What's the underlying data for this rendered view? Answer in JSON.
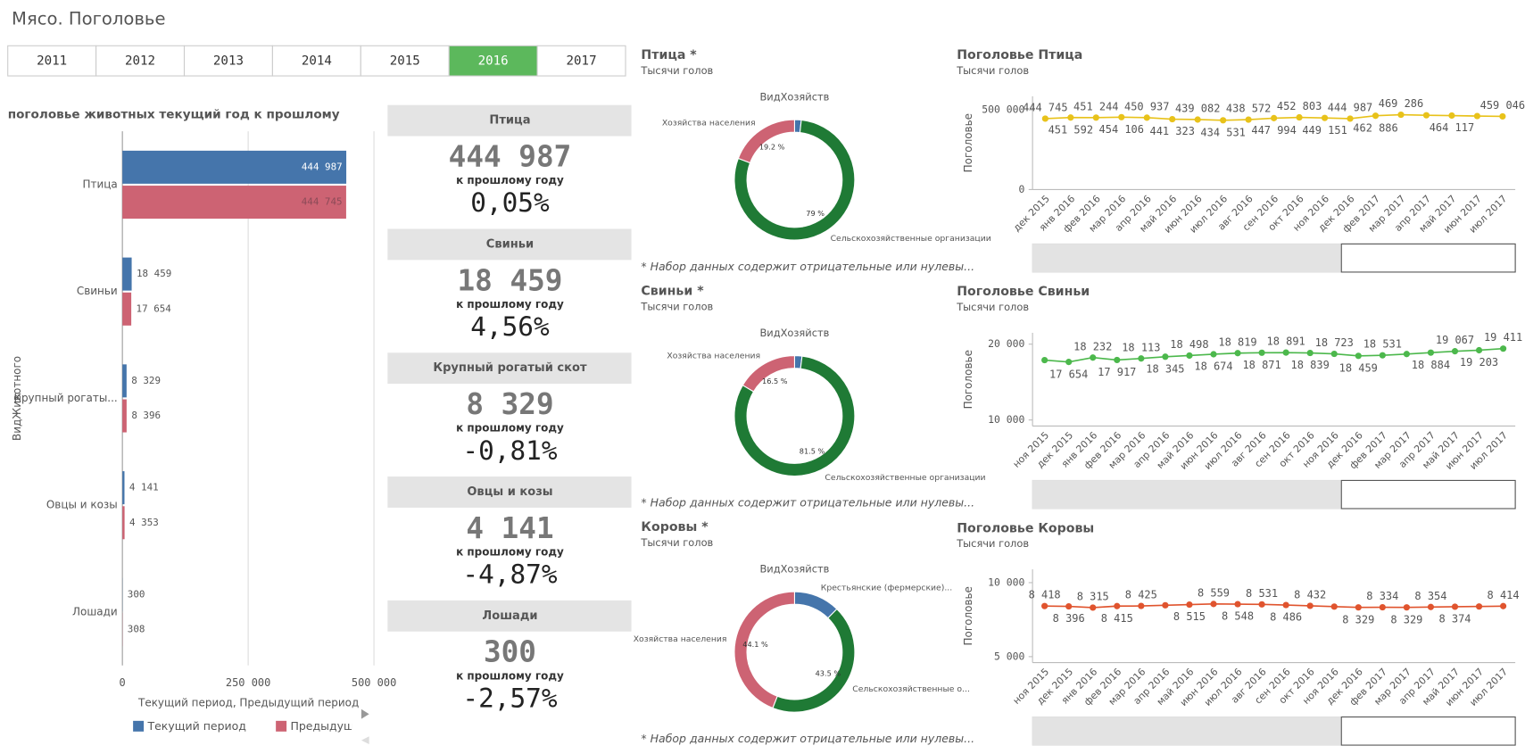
{
  "title": "Мясо. Поголовье",
  "years": [
    "2011",
    "2012",
    "2013",
    "2014",
    "2015",
    "2016",
    "2017"
  ],
  "selected_year": "2016",
  "kpis": [
    {
      "name": "Птица",
      "value": "444 987",
      "caption": "к прошлому году",
      "change": "0,05%"
    },
    {
      "name": "Свиньи",
      "value": "18 459",
      "caption": "к прошлому году",
      "change": "4,56%"
    },
    {
      "name": "Крупный рогатый скот",
      "value": "8 329",
      "caption": "к прошлому году",
      "change": "-0,81%"
    },
    {
      "name": "Овцы и козы",
      "value": "4 141",
      "caption": "к прошлому году",
      "change": "-4,87%"
    },
    {
      "name": "Лошади",
      "value": "300",
      "caption": "к прошлому году",
      "change": "-2,57%"
    }
  ],
  "chart_data": [
    {
      "type": "bar",
      "orientation": "horizontal",
      "title": "поголовье животных текущий год к прошлому",
      "x_label": "Текущий период, Предыдущий период",
      "y_label": "ВидЖивотного",
      "categories": [
        "Птица",
        "Свиньи",
        "Крупный рогаты...",
        "Овцы и козы",
        "Лошади"
      ],
      "series": [
        {
          "name": "Текущий период",
          "color": "#4575ab",
          "values": [
            444987,
            18459,
            8329,
            4141,
            300
          ],
          "value_labels": [
            "444 987",
            "18 459",
            "8 329",
            "4 141",
            "300"
          ]
        },
        {
          "name": "Предыдущий период",
          "color": "#cd6373",
          "values": [
            444745,
            17654,
            8396,
            4353,
            308
          ],
          "value_labels": [
            "444 745",
            "17 654",
            "8 396",
            "4 353",
            "308"
          ]
        }
      ],
      "xlim": [
        0,
        500000
      ],
      "xticks": [
        0,
        {
          "value": 250000,
          "label": "250 000"
        },
        {
          "value": 500000,
          "label": "500 000"
        }
      ],
      "grid": true
    },
    {
      "type": "pie",
      "donut": true,
      "title": "Птица *",
      "subtitle": "Тысячи голов",
      "dimension_label": "ВидХозяйств",
      "categories": [
        null,
        "Сельскохозяйственные организации",
        "Хозяйства населения"
      ],
      "values": [
        1.8,
        79,
        19.2
      ],
      "value_labels": [
        null,
        "79 %",
        "19.2 %"
      ],
      "colors": [
        "#4575ab",
        "#1f7a35",
        "#cd6373"
      ],
      "footnote": "* Набор данных содержит отрицательные или нулевы..."
    },
    {
      "type": "pie",
      "donut": true,
      "title": "Свиньи *",
      "subtitle": "Тысячи голов",
      "dimension_label": "ВидХозяйств",
      "categories": [
        null,
        "Сельскохозяйственные организации",
        "Хозяйства населения"
      ],
      "values": [
        2,
        81.5,
        16.5
      ],
      "value_labels": [
        null,
        "81.5 %",
        "16.5 %"
      ],
      "colors": [
        "#4575ab",
        "#1f7a35",
        "#cd6373"
      ],
      "footnote": "* Набор данных содержит отрицательные или нулевы..."
    },
    {
      "type": "pie",
      "donut": true,
      "title": "Коровы *",
      "subtitle": "Тысячи голов",
      "dimension_label": "ВидХозяйств",
      "categories": [
        "Крестьянские (фермерские)...",
        "Сельскохозяйственные о...",
        "Хозяйства населения"
      ],
      "values": [
        12.4,
        43.5,
        44.1
      ],
      "value_labels": [
        null,
        "43.5 %",
        "44.1 %"
      ],
      "colors": [
        "#4575ab",
        "#1f7a35",
        "#cd6373"
      ],
      "footnote": "* Набор данных содержит отрицательные или нулевы..."
    },
    {
      "type": "line",
      "title": "Поголовье Птица",
      "subtitle": "Тысячи голов",
      "y_label": "Поголовье",
      "color": "#e8c21a",
      "categories": [
        "дек 2015",
        "янв 2016",
        "фев 2016",
        "мар 2016",
        "апр 2016",
        "май 2016",
        "июн 2016",
        "июл 2016",
        "авг 2016",
        "сен 2016",
        "окт 2016",
        "ноя 2016",
        "дек 2016",
        "фев 2017",
        "мар 2017",
        "апр 2017",
        "май 2017",
        "июн 2017",
        "июл 2017"
      ],
      "values": [
        444745,
        451592,
        451244,
        454106,
        450937,
        441323,
        439082,
        434531,
        438572,
        447994,
        452803,
        449151,
        444987,
        462886,
        469286,
        466000,
        464117,
        461000,
        459046
      ],
      "value_labels": [
        "444 745",
        "451 592",
        "451 244",
        "454 106",
        "450 937",
        "441 323",
        "439 082",
        "434 531",
        "438 572",
        "447 994",
        "452 803",
        "449 151",
        "444 987",
        "462 886",
        "469 286",
        null,
        "464 117",
        null,
        "459 046"
      ],
      "ylim": [
        0,
        585000
      ],
      "yticks": [
        0,
        {
          "value": 500000,
          "label": "500 000"
        }
      ]
    },
    {
      "type": "line",
      "title": "Поголовье Свиньи",
      "subtitle": "Тысячи голов",
      "y_label": "Поголовье",
      "color": "#4cb84c",
      "categories": [
        "ноя 2015",
        "дек 2015",
        "янв 2016",
        "фев 2016",
        "мар 2016",
        "апр 2016",
        "май 2016",
        "июн 2016",
        "июл 2016",
        "авг 2016",
        "сен 2016",
        "окт 2016",
        "ноя 2016",
        "дек 2016",
        "фев 2017",
        "мар 2017",
        "апр 2017",
        "май 2017",
        "июн 2017",
        "июл 2017"
      ],
      "values": [
        17900,
        17654,
        18232,
        17917,
        18113,
        18345,
        18498,
        18674,
        18819,
        18871,
        18891,
        18839,
        18723,
        18459,
        18531,
        18700,
        18884,
        19067,
        19203,
        19411
      ],
      "value_labels": [
        null,
        "17 654",
        "18 232",
        "17 917",
        "18 113",
        "18 345",
        "18 498",
        "18 674",
        "18 819",
        "18 871",
        "18 891",
        "18 839",
        "18 723",
        "18 459",
        "18 531",
        null,
        "18 884",
        "19 067",
        "19 203",
        "19 411"
      ],
      "ylim": [
        9200,
        21500
      ],
      "yticks": [
        {
          "value": 10000,
          "label": "10 000"
        },
        {
          "value": 20000,
          "label": "20 000"
        }
      ]
    },
    {
      "type": "line",
      "title": "Поголовье Коровы",
      "subtitle": "Тысячи голов",
      "y_label": "Поголовье",
      "color": "#e0542e",
      "categories": [
        "ноя 2015",
        "дек 2015",
        "янв 2016",
        "фев 2016",
        "мар 2016",
        "апр 2016",
        "май 2016",
        "июн 2016",
        "июл 2016",
        "авг 2016",
        "сен 2016",
        "окт 2016",
        "ноя 2016",
        "дек 2016",
        "фев 2017",
        "мар 2017",
        "апр 2017",
        "май 2017",
        "июн 2017",
        "июл 2017"
      ],
      "values": [
        8418,
        8396,
        8315,
        8415,
        8425,
        8470,
        8515,
        8559,
        8548,
        8531,
        8486,
        8432,
        8380,
        8329,
        8334,
        8329,
        8354,
        8374,
        8390,
        8414
      ],
      "value_labels": [
        "8 418",
        "8 396",
        "8 315",
        "8 415",
        "8 425",
        null,
        "8 515",
        "8 559",
        "8 548",
        "8 531",
        "8 486",
        "8 432",
        null,
        "8 329",
        "8 334",
        "8 329",
        "8 354",
        "8 374",
        null,
        "8 414"
      ],
      "ylim": [
        4600,
        10900
      ],
      "yticks": [
        {
          "value": 5000,
          "label": "5 000"
        },
        {
          "value": 10000,
          "label": "10 000"
        }
      ]
    }
  ]
}
